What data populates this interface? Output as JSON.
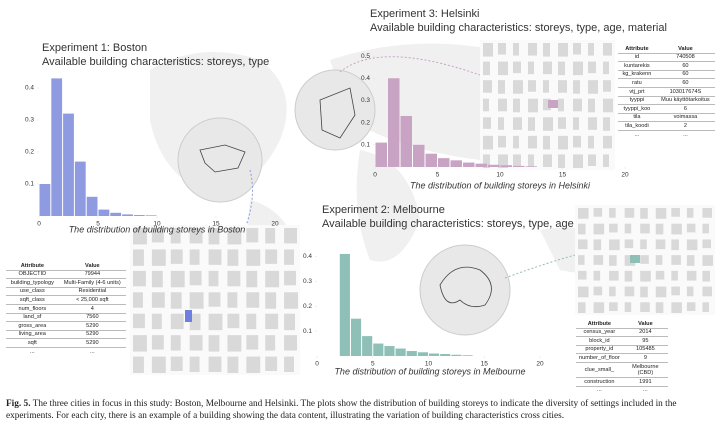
{
  "chart_data": [
    {
      "type": "histogram",
      "title": "Experiment 1: Boston",
      "subtitle": "Available building characteristics: storeys, type",
      "xlabel": "The distribution of building storeys in Boston",
      "color": "#8e9be0",
      "bins": [
        0,
        1,
        2,
        3,
        4,
        5,
        6,
        7,
        8,
        9,
        10
      ],
      "values": [
        0.1,
        0.43,
        0.32,
        0.17,
        0.06,
        0.02,
        0.01,
        0.005,
        0.003,
        0.002
      ],
      "xlim": [
        0,
        20
      ],
      "xticks": [
        0,
        5,
        10,
        15,
        20
      ],
      "ylim": [
        0,
        0.45
      ],
      "yticks": [
        0.1,
        0.2,
        0.3,
        0.4
      ]
    },
    {
      "type": "histogram",
      "title": "Experiment 3: Helsinki",
      "subtitle": "Available building characteristics: storeys, type, age, material",
      "xlabel": "The distribution of building storeys in Helsinki",
      "color": "#c9a3c4",
      "bins": [
        0,
        1,
        2,
        3,
        4,
        5,
        6,
        7,
        8,
        9,
        10,
        11,
        12,
        13
      ],
      "values": [
        0.11,
        0.4,
        0.23,
        0.1,
        0.06,
        0.04,
        0.03,
        0.02,
        0.015,
        0.01,
        0.008,
        0.005,
        0.003
      ],
      "xlim": [
        0,
        20
      ],
      "xticks": [
        0,
        5,
        10,
        15,
        20
      ],
      "ylim": [
        0,
        0.55
      ],
      "yticks": [
        0.1,
        0.2,
        0.3,
        0.4,
        0.5
      ]
    },
    {
      "type": "histogram",
      "title": "Experiment 2: Melbourne",
      "subtitle": "Available building characteristics: storeys, type, age",
      "xlabel": "The distribution of building storeys in Melbourne",
      "color": "#8fc0b8",
      "bins": [
        2,
        3,
        4,
        5,
        6,
        7,
        8,
        9,
        10,
        11,
        12,
        13,
        14
      ],
      "values": [
        0.41,
        0.15,
        0.08,
        0.05,
        0.04,
        0.03,
        0.02,
        0.015,
        0.01,
        0.008,
        0.005,
        0.003
      ],
      "xlim": [
        0,
        20
      ],
      "xticks": [
        0,
        5,
        10,
        15,
        20
      ],
      "ylim": [
        0,
        0.45
      ],
      "yticks": [
        0.1,
        0.2,
        0.3,
        0.4
      ]
    }
  ],
  "tables": [
    {
      "header": [
        "Attribute",
        "Value"
      ],
      "rows": [
        [
          "OBJECTID",
          79944
        ],
        [
          "building_typology",
          "Multi-Family (4-6 units)"
        ],
        [
          "use_class",
          "Residential"
        ],
        [
          "sqft_class",
          "< 25,000 sqft"
        ],
        [
          "num_floors",
          4
        ],
        [
          "land_sf",
          7560
        ],
        [
          "gross_area",
          5290
        ],
        [
          "living_area",
          5290
        ],
        [
          "sqft",
          5290
        ],
        [
          "...",
          "..."
        ]
      ]
    },
    {
      "header": [
        "Attribute",
        "Value"
      ],
      "rows": [
        [
          "id",
          740508
        ],
        [
          "kuntarekis",
          60
        ],
        [
          "kg_krakenn",
          60
        ],
        [
          "ratu",
          60
        ],
        [
          "vtj_prt",
          "103017674S"
        ],
        [
          "tyyppi",
          "Muu käyttötarkoitus"
        ],
        [
          "tyyppi_koo",
          6
        ],
        [
          "tila",
          "voimassa"
        ],
        [
          "tila_koodi",
          2
        ],
        [
          "...",
          "..."
        ]
      ]
    },
    {
      "header": [
        "Attribute",
        "Value"
      ],
      "rows": [
        [
          "census_year",
          2014
        ],
        [
          "block_id",
          95
        ],
        [
          "property_id",
          105485
        ],
        [
          "number_of_floor",
          9
        ],
        [
          "clue_small_",
          "Melbourne (CBD)"
        ],
        [
          "construction",
          1991
        ],
        [
          "...",
          "..."
        ]
      ]
    }
  ],
  "caption": {
    "label": "Fig. 5.",
    "text": "The three cities in focus in this study: Boston, Melbourne and Helsinki. The plots show the distribution of building storeys to indicate the diversity of settings included in the experiments. For each city, there is an example of a building showing the data content, illustrating the variation of building characteristics cross cities."
  }
}
